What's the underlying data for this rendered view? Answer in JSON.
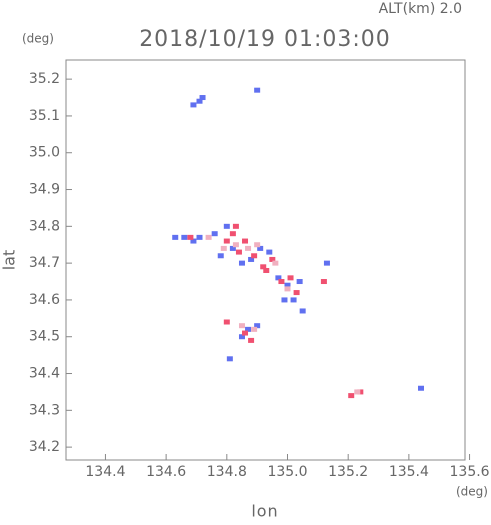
{
  "chart_data": {
    "type": "scatter",
    "title": "2018/10/19 01:03:00",
    "subtitle": "ALT(km) 2.0",
    "x_label": "lon",
    "y_label": "lat",
    "x_unit": "(deg)",
    "y_unit": "(deg)",
    "xlim": [
      134.27,
      135.585
    ],
    "ylim": [
      34.165,
      35.252
    ],
    "xticks": [
      134.4,
      134.6,
      134.8,
      {
        "value": 135.0,
        "label": "135.0"
      },
      135.2,
      135.4,
      135.6
    ],
    "yticks": [
      34.2,
      34.3,
      34.4,
      34.5,
      34.6,
      34.7,
      34.8,
      34.9,
      {
        "value": 35.0,
        "label": "35.0"
      },
      35.1,
      35.2
    ],
    "series": [
      {
        "color": "#6070f0",
        "x": [
          134.69,
          134.71,
          134.72,
          134.63,
          134.66,
          134.69,
          134.71,
          134.76,
          134.78,
          134.82,
          134.85,
          134.88,
          134.91,
          134.94,
          134.97,
          135.0,
          135.02,
          135.04,
          134.99,
          135.05,
          134.85,
          134.87,
          134.9,
          134.81,
          135.13,
          135.44,
          134.8,
          134.9
        ],
        "values": [
          35.13,
          35.14,
          35.15,
          34.77,
          34.77,
          34.76,
          34.77,
          34.78,
          34.72,
          34.74,
          34.7,
          34.71,
          34.74,
          34.73,
          34.66,
          34.64,
          34.6,
          34.65,
          34.6,
          34.57,
          34.5,
          34.52,
          34.53,
          34.44,
          34.7,
          34.36,
          34.8,
          35.17
        ]
      },
      {
        "color": "#f05070",
        "x": [
          134.68,
          134.8,
          134.82,
          134.84,
          134.86,
          134.89,
          134.92,
          134.95,
          134.98,
          135.01,
          135.03,
          134.88,
          134.86,
          134.8,
          135.21,
          135.24,
          134.83,
          134.93,
          135.12
        ],
        "values": [
          34.77,
          34.76,
          34.78,
          34.73,
          34.76,
          34.72,
          34.69,
          34.71,
          34.65,
          34.66,
          34.62,
          34.49,
          34.51,
          34.54,
          34.34,
          34.35,
          34.8,
          34.68,
          34.65
        ]
      },
      {
        "color": "#f0b0c0",
        "x": [
          134.79,
          134.83,
          134.87,
          134.9,
          134.96,
          135.0,
          134.85,
          134.89,
          134.74,
          135.23
        ],
        "values": [
          34.74,
          34.75,
          34.74,
          34.75,
          34.7,
          34.63,
          34.53,
          34.52,
          34.77,
          34.35
        ]
      }
    ]
  }
}
